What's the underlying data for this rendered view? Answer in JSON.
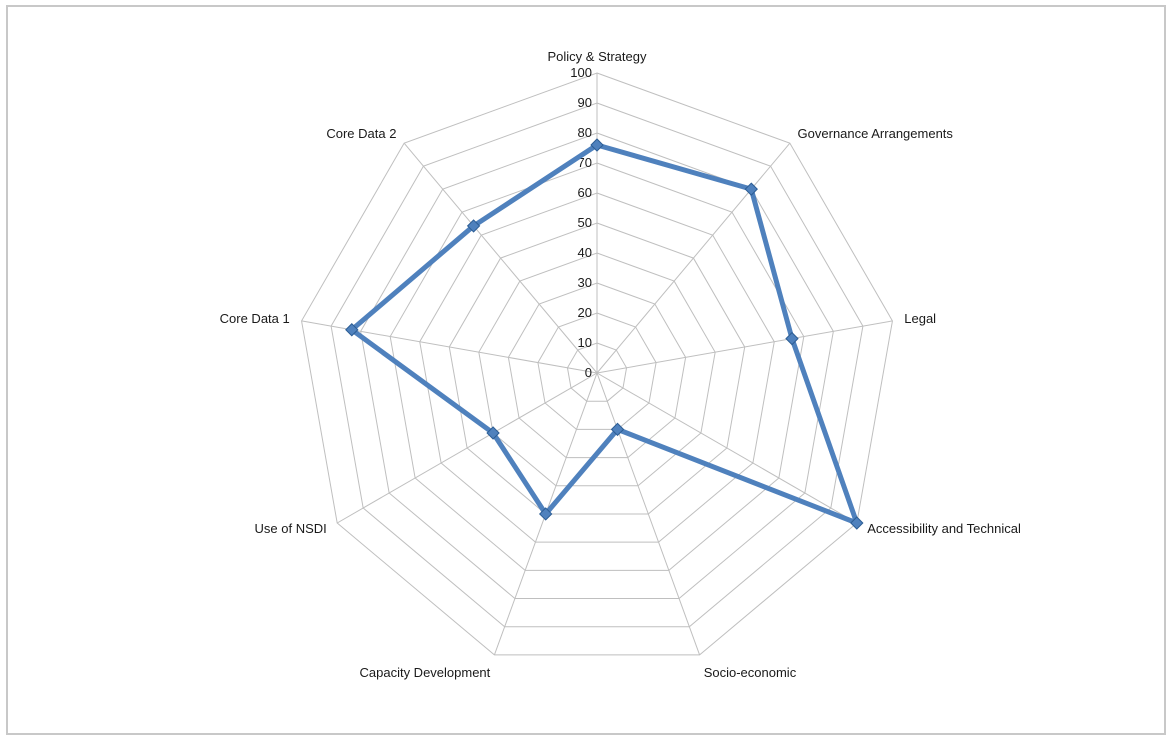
{
  "chart_data": {
    "type": "radar",
    "categories": [
      "Policy & Strategy",
      "Governance Arrangements",
      "Legal",
      "Accessibility and Technical",
      "Socio-economic",
      "Capacity Development",
      "Use of NSDI",
      "Core Data 1",
      "Core Data 2"
    ],
    "series": [
      {
        "values": [
          76,
          80,
          66,
          100,
          20,
          50,
          40,
          83,
          64
        ]
      }
    ],
    "rlim": [
      0,
      100
    ],
    "ticks": [
      "0",
      "10",
      "20",
      "30",
      "40",
      "50",
      "60",
      "70",
      "80",
      "90",
      "100"
    ],
    "grid": true,
    "legend": "none",
    "colors": {
      "series": "#4f81bd",
      "marker": "#4f81bd",
      "grid": "#bfbfbf",
      "frame": "#c8c8c8"
    }
  }
}
